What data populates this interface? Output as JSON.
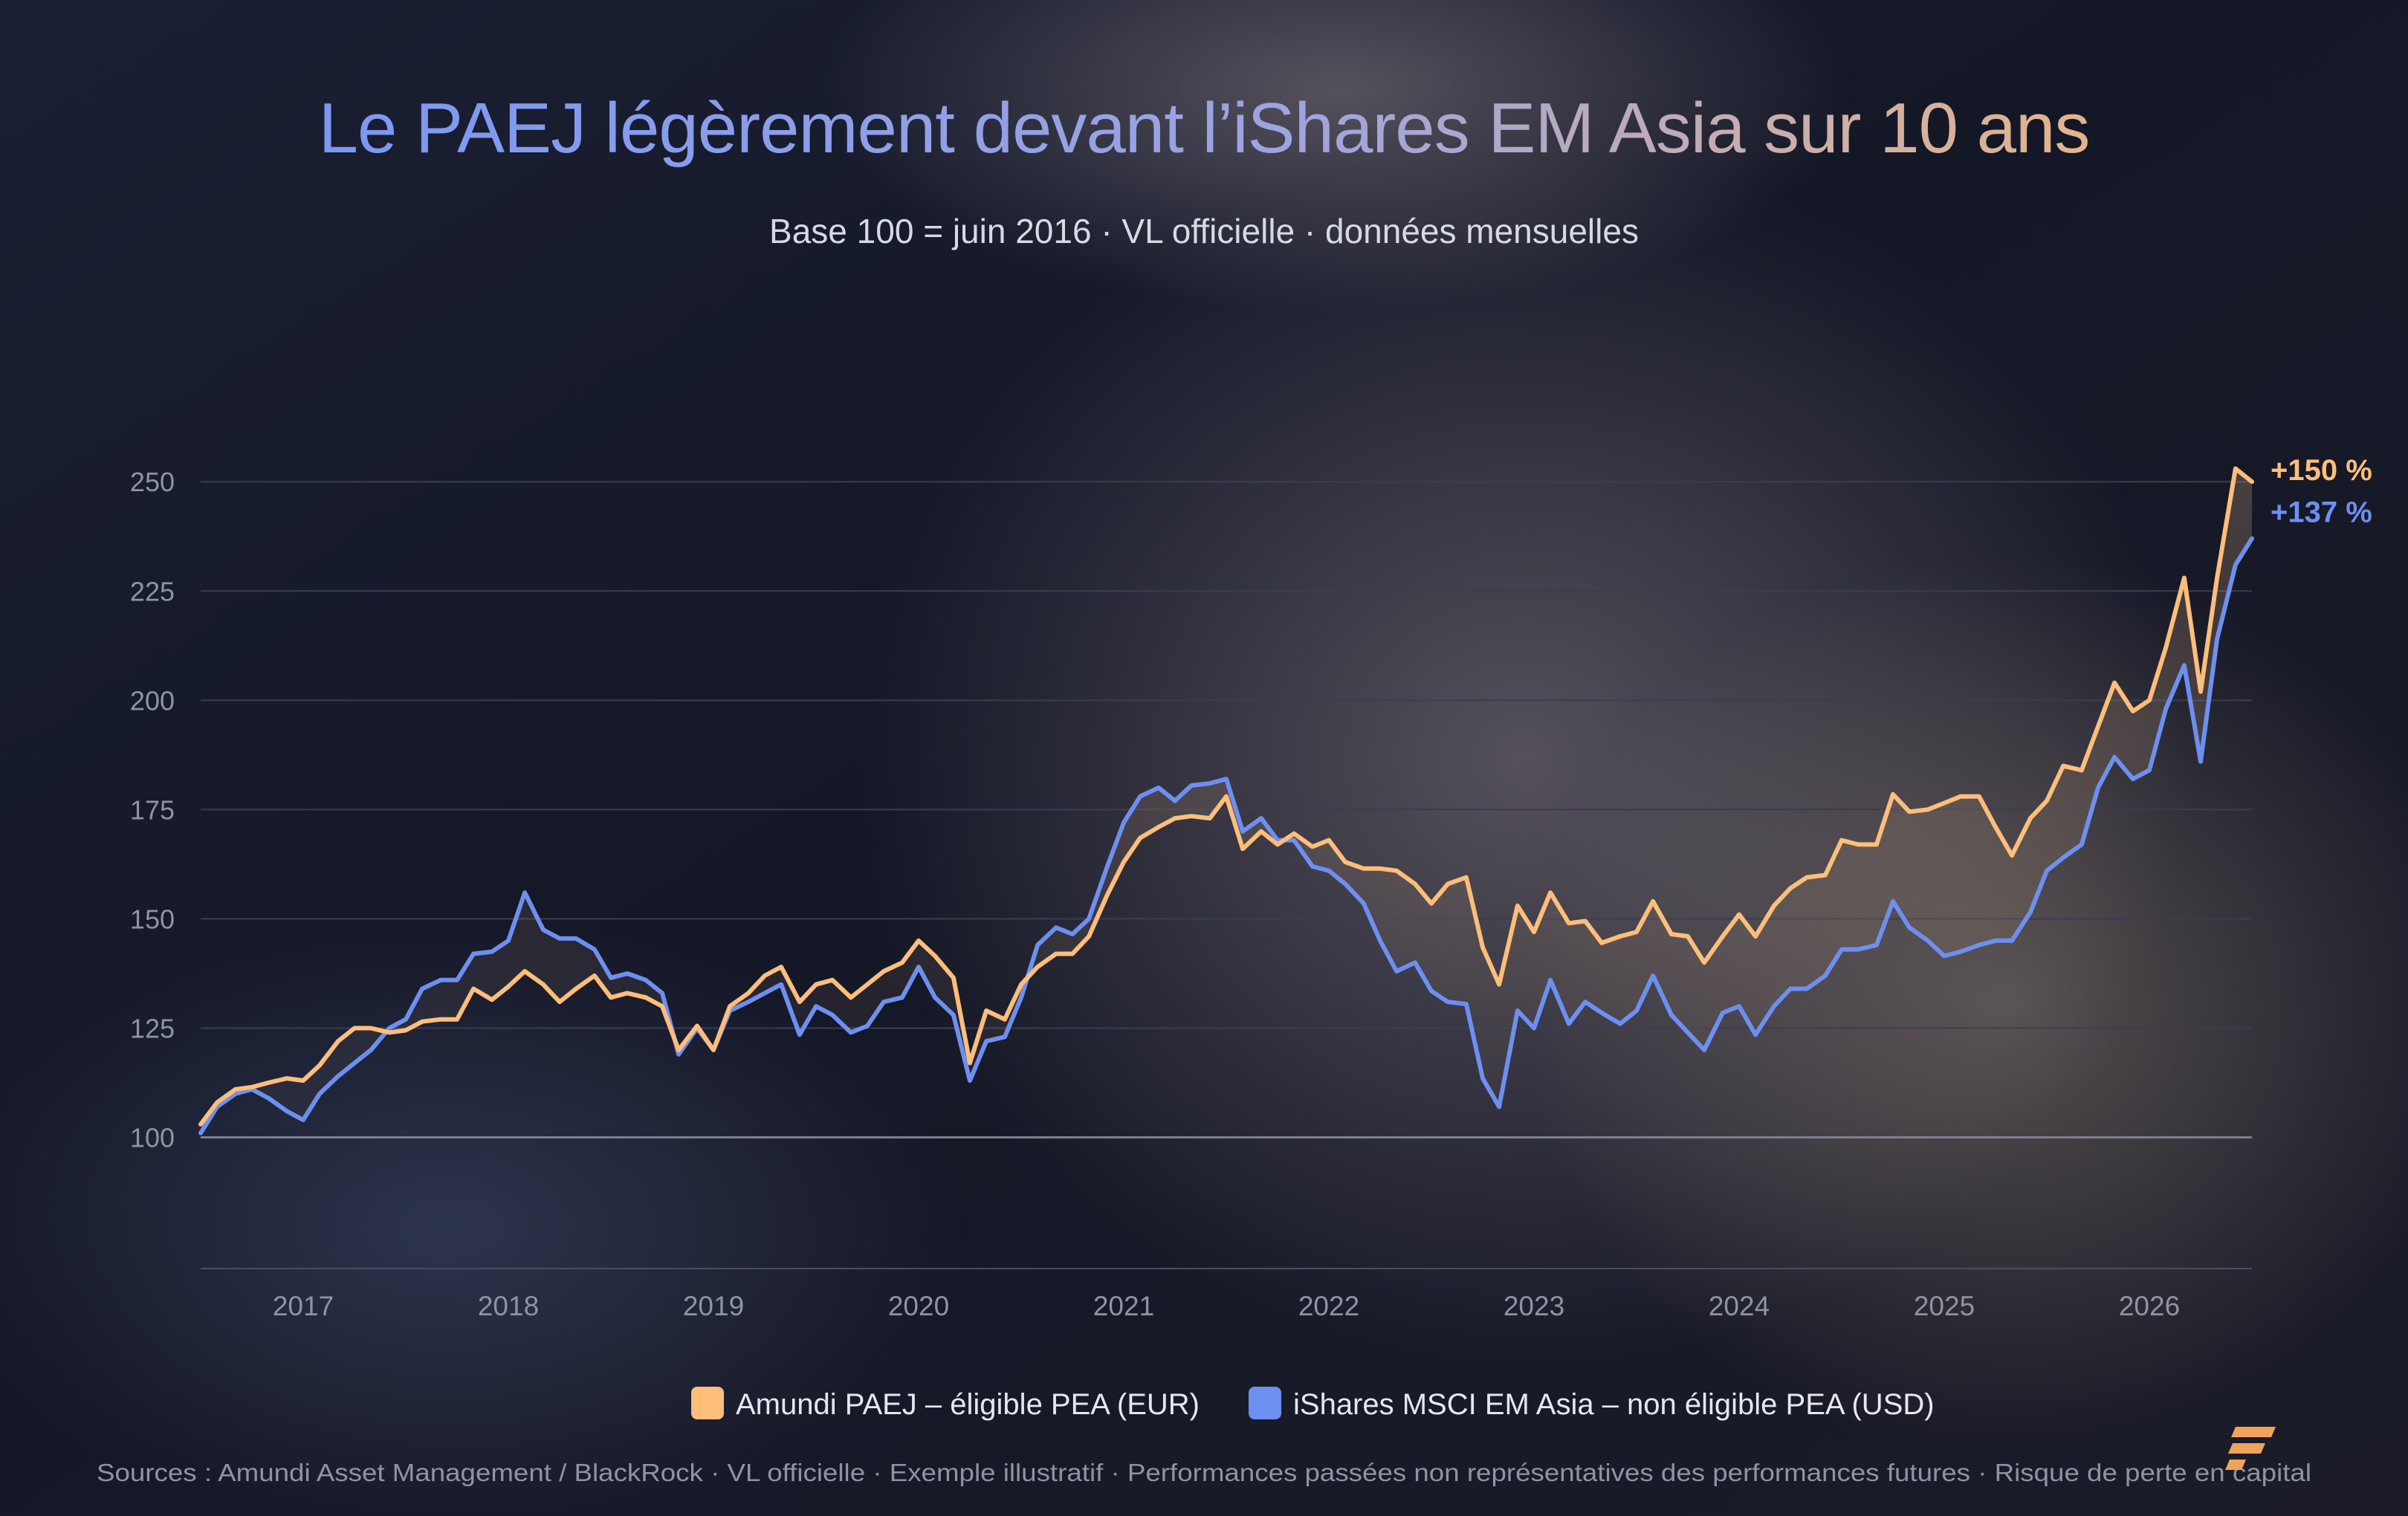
{
  "chart_data": {
    "type": "line",
    "title": "Le PAEJ légèrement devant l’iShares EM Asia sur 10 ans",
    "subtitle": "Base 100 = juin 2016 · VL officielle · données mensuelles",
    "xlabel": "",
    "ylabel": "",
    "xlim": [
      2016.5,
      2026.5
    ],
    "ylim": [
      70,
      265
    ],
    "x_ticks": [
      "2017",
      "2018",
      "2019",
      "2020",
      "2021",
      "2022",
      "2023",
      "2024",
      "2025",
      "2026"
    ],
    "y_ticks": [
      100,
      125,
      150,
      175,
      200,
      225,
      250
    ],
    "grid": true,
    "legend_position": "bottom",
    "series": [
      {
        "name": "Amundi PAEJ – éligible PEA (EUR)",
        "color": "#ffbe7a",
        "end_label": "+150 %",
        "x": [
          2016.5,
          2016.58,
          2016.67,
          2016.75,
          2016.83,
          2016.92,
          2017.0,
          2017.08,
          2017.17,
          2017.25,
          2017.33,
          2017.42,
          2017.5,
          2017.58,
          2017.67,
          2017.75,
          2017.83,
          2017.92,
          2018.0,
          2018.08,
          2018.17,
          2018.25,
          2018.33,
          2018.42,
          2018.5,
          2018.58,
          2018.67,
          2018.75,
          2018.83,
          2018.92,
          2019.0,
          2019.08,
          2019.17,
          2019.25,
          2019.33,
          2019.42,
          2019.5,
          2019.58,
          2019.67,
          2019.75,
          2019.83,
          2019.92,
          2020.0,
          2020.08,
          2020.17,
          2020.25,
          2020.33,
          2020.42,
          2020.5,
          2020.58,
          2020.67,
          2020.75,
          2020.83,
          2020.92,
          2021.0,
          2021.08,
          2021.17,
          2021.25,
          2021.33,
          2021.42,
          2021.5,
          2021.58,
          2021.67,
          2021.75,
          2021.83,
          2021.92,
          2022.0,
          2022.08,
          2022.17,
          2022.25,
          2022.33,
          2022.42,
          2022.5,
          2022.58,
          2022.67,
          2022.75,
          2022.83,
          2022.92,
          2023.0,
          2023.08,
          2023.17,
          2023.25,
          2023.33,
          2023.42,
          2023.5,
          2023.58,
          2023.67,
          2023.75,
          2023.83,
          2023.92,
          2024.0,
          2024.08,
          2024.17,
          2024.25,
          2024.33,
          2024.42,
          2024.5,
          2024.58,
          2024.67,
          2024.75,
          2024.83,
          2024.92,
          2025.0,
          2025.08,
          2025.17,
          2025.25,
          2025.33,
          2025.42,
          2025.5,
          2025.58,
          2025.67,
          2025.75,
          2025.83,
          2025.92,
          2026.0,
          2026.08,
          2026.17,
          2026.25,
          2026.33,
          2026.42,
          2026.5
        ],
        "values": [
          103,
          108,
          111,
          111.5,
          112.5,
          113.5,
          113,
          116.5,
          122,
          125,
          125,
          124,
          124.5,
          126.5,
          127,
          127,
          134,
          131.5,
          134.5,
          138,
          135,
          131,
          134,
          137,
          132,
          133,
          132,
          130,
          120,
          125.5,
          120,
          130,
          133,
          137,
          139,
          131,
          135,
          136,
          132,
          135,
          138,
          140,
          145,
          141.5,
          136.5,
          117,
          129,
          127,
          135,
          139,
          142,
          142,
          146,
          155.5,
          163,
          168.5,
          171,
          173,
          173.5,
          173,
          178,
          166,
          170,
          167,
          169.5,
          166.5,
          168,
          163,
          161.5,
          161.5,
          161,
          158,
          153.5,
          158,
          159.5,
          143.5,
          135,
          153,
          147,
          156,
          149,
          149.5,
          144.5,
          146,
          147,
          154,
          146.5,
          146,
          140,
          146,
          151,
          146,
          153,
          157,
          159.5,
          160,
          168,
          167,
          167,
          178.5,
          174.5,
          175,
          176.5,
          178,
          178,
          171,
          164.5,
          173,
          177,
          185,
          184,
          194,
          204,
          197.5,
          200,
          212,
          228,
          202,
          228,
          253,
          250
        ]
      },
      {
        "name": "iShares MSCI EM Asia – non éligible PEA (USD)",
        "color": "#6d8ff0",
        "end_label": "+137 %",
        "x": [
          2016.5,
          2016.58,
          2016.67,
          2016.75,
          2016.83,
          2016.92,
          2017.0,
          2017.08,
          2017.17,
          2017.25,
          2017.33,
          2017.42,
          2017.5,
          2017.58,
          2017.67,
          2017.75,
          2017.83,
          2017.92,
          2018.0,
          2018.08,
          2018.17,
          2018.25,
          2018.33,
          2018.42,
          2018.5,
          2018.58,
          2018.67,
          2018.75,
          2018.83,
          2018.92,
          2019.0,
          2019.08,
          2019.17,
          2019.25,
          2019.33,
          2019.42,
          2019.5,
          2019.58,
          2019.67,
          2019.75,
          2019.83,
          2019.92,
          2020.0,
          2020.08,
          2020.17,
          2020.25,
          2020.33,
          2020.42,
          2020.5,
          2020.58,
          2020.67,
          2020.75,
          2020.83,
          2020.92,
          2021.0,
          2021.08,
          2021.17,
          2021.25,
          2021.33,
          2021.42,
          2021.5,
          2021.58,
          2021.67,
          2021.75,
          2021.83,
          2021.92,
          2022.0,
          2022.08,
          2022.17,
          2022.25,
          2022.33,
          2022.42,
          2022.5,
          2022.58,
          2022.67,
          2022.75,
          2022.83,
          2022.92,
          2023.0,
          2023.08,
          2023.17,
          2023.25,
          2023.33,
          2023.42,
          2023.5,
          2023.58,
          2023.67,
          2023.75,
          2023.83,
          2023.92,
          2024.0,
          2024.08,
          2024.17,
          2024.25,
          2024.33,
          2024.42,
          2024.5,
          2024.58,
          2024.67,
          2024.75,
          2024.83,
          2024.92,
          2025.0,
          2025.08,
          2025.17,
          2025.25,
          2025.33,
          2025.42,
          2025.5,
          2025.58,
          2025.67,
          2025.75,
          2025.83,
          2025.92,
          2026.0,
          2026.08,
          2026.17,
          2026.25,
          2026.33,
          2026.42,
          2026.5
        ],
        "values": [
          101,
          107,
          110,
          111,
          109,
          106,
          104,
          110,
          114,
          117,
          120,
          125,
          127,
          134,
          136,
          136,
          142,
          142.5,
          145,
          156,
          147.5,
          145.5,
          145.5,
          143,
          136.5,
          137.5,
          136,
          133,
          119,
          125,
          120,
          129,
          131,
          133,
          135,
          123.5,
          130,
          128,
          124,
          125.5,
          131,
          132,
          139,
          132,
          128,
          113,
          122,
          123,
          132,
          144,
          148,
          146.5,
          150,
          162,
          172,
          178,
          180,
          177,
          180.5,
          181,
          182,
          170,
          173,
          168,
          168,
          162,
          161,
          158,
          153.5,
          145,
          138,
          140,
          133.5,
          131,
          130.5,
          113.5,
          107,
          129,
          125,
          136,
          126,
          131,
          128.5,
          126,
          129,
          137,
          128,
          124,
          120,
          128.5,
          130,
          123.5,
          130,
          134,
          134,
          137,
          143,
          143,
          144,
          154,
          148,
          145,
          141.5,
          142.5,
          144,
          145,
          145,
          151.5,
          161,
          164,
          167,
          180,
          187,
          182,
          184,
          198,
          208,
          186,
          214,
          231,
          237
        ]
      }
    ]
  },
  "footer": {
    "sources": "Sources : Amundi Asset Management / BlackRock · VL officielle · Exemple illustratif · Performances passées non représentatives des performances futures · Risque de perte en capital",
    "logo_icon": "brand-logo-icon"
  },
  "colors": {
    "background": "#15182a",
    "gridline": "#3a3d52",
    "axis_text": "#8f93a6",
    "text": "#d7d9e4",
    "title_start": "#7b98f2",
    "title_end": "#e4b48a"
  }
}
